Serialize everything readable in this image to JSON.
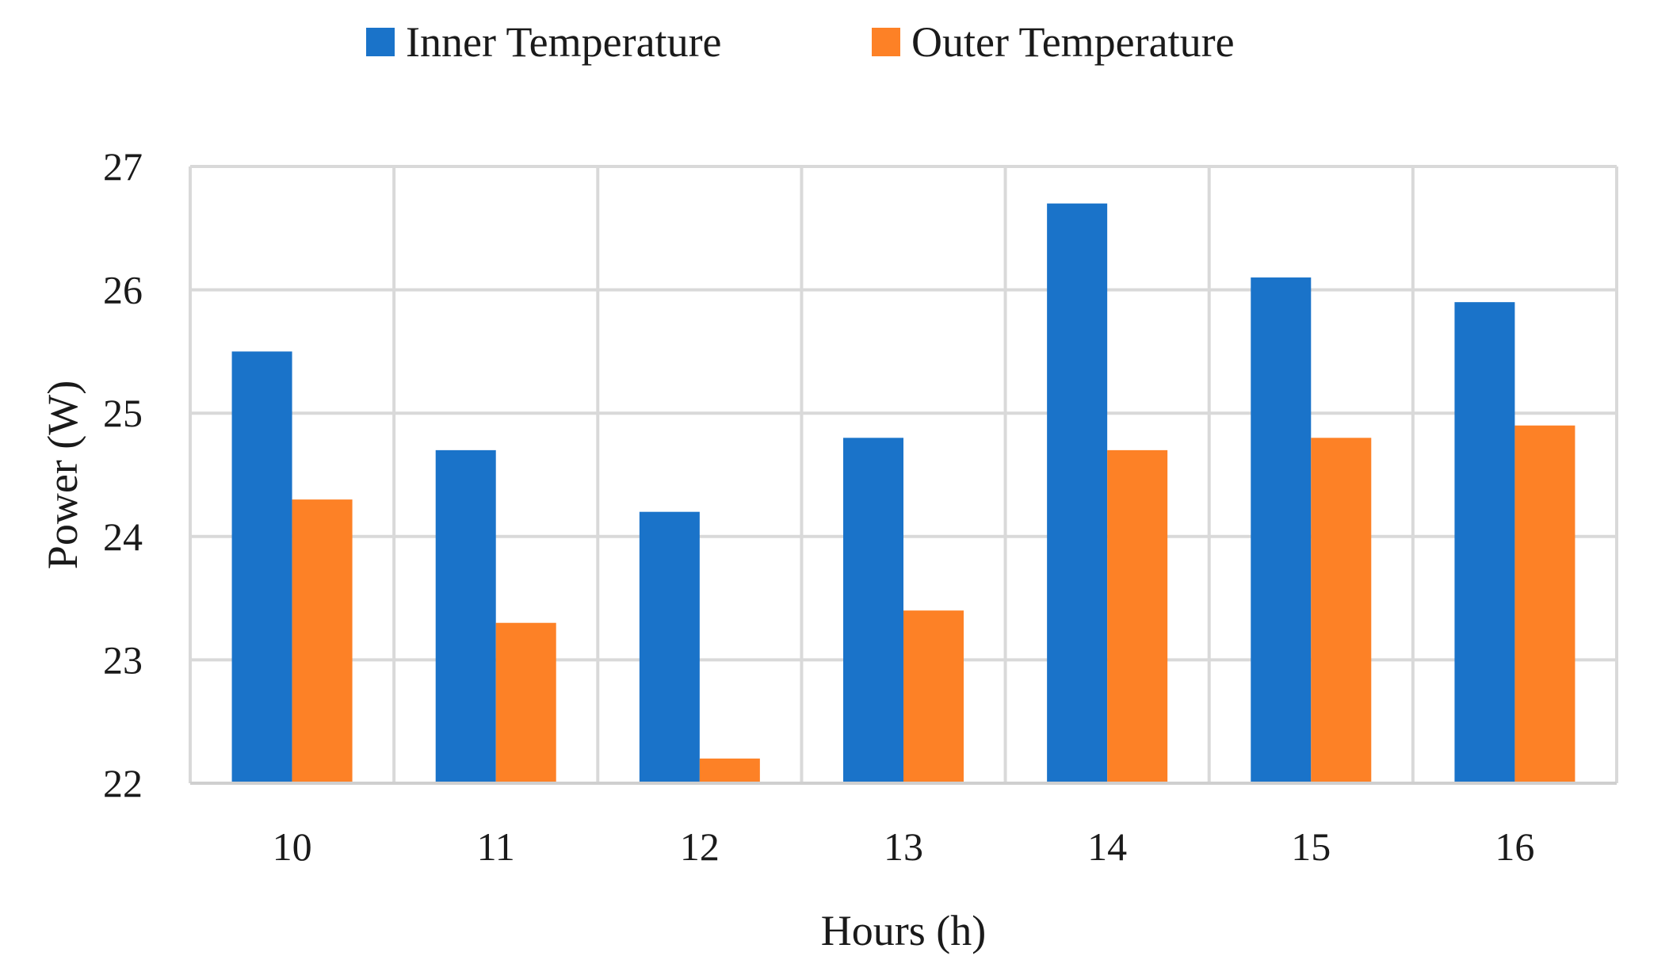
{
  "chart_data": {
    "type": "bar",
    "title": "",
    "xlabel": "Hours (h)",
    "ylabel": "Power (W)",
    "categories": [
      "10",
      "11",
      "12",
      "13",
      "14",
      "15",
      "16"
    ],
    "ylim": [
      22,
      27
    ],
    "yticks": [
      22,
      23,
      24,
      25,
      26,
      27
    ],
    "grid": true,
    "legend_position": "top",
    "series": [
      {
        "name": "Inner Temperature",
        "color": "#1a73c9",
        "values": [
          25.5,
          24.7,
          24.2,
          24.8,
          26.7,
          26.1,
          25.9
        ]
      },
      {
        "name": "Outer Temperature",
        "color": "#fd8126",
        "values": [
          24.3,
          23.3,
          22.2,
          23.4,
          24.7,
          24.8,
          24.9
        ]
      }
    ]
  }
}
